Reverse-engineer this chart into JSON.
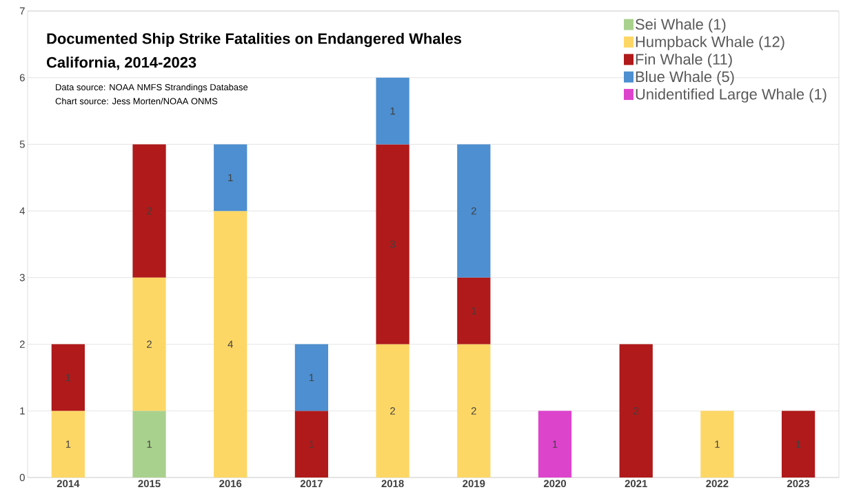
{
  "chart_data": {
    "type": "bar",
    "stacked": true,
    "title": "Documented Ship Strike Fatalities on Endangered Whales",
    "subtitle": "California, 2014-2023",
    "annotations": [
      "Data source: NOAA NMFS Strandings Database",
      "Chart source: Jess Morten/NOAA ONMS"
    ],
    "categories": [
      "2014",
      "2015",
      "2016",
      "2017",
      "2018",
      "2019",
      "2020",
      "2021",
      "2022",
      "2023"
    ],
    "series": [
      {
        "name": "Sei Whale (1)",
        "color": "#a9d18e",
        "values": [
          null,
          1,
          null,
          null,
          null,
          null,
          null,
          null,
          null,
          null
        ]
      },
      {
        "name": "Humpback Whale (12)",
        "color": "#fdd766",
        "values": [
          1,
          2,
          4,
          null,
          2,
          2,
          null,
          null,
          1,
          null
        ]
      },
      {
        "name": "Fin Whale (11)",
        "color": "#b01a1a",
        "values": [
          1,
          2,
          null,
          1,
          3,
          1,
          null,
          2,
          null,
          1
        ]
      },
      {
        "name": "Blue Whale (5)",
        "color": "#4d8fd0",
        "values": [
          null,
          null,
          1,
          1,
          1,
          2,
          null,
          null,
          null,
          null
        ]
      },
      {
        "name": "Unidentified Large Whale (1)",
        "color": "#dd44cc",
        "values": [
          null,
          null,
          null,
          null,
          null,
          null,
          1,
          null,
          null,
          null
        ]
      }
    ],
    "ylim": [
      0,
      7
    ],
    "yticks": [
      0,
      1,
      2,
      3,
      4,
      5,
      6,
      7
    ],
    "grid": "y",
    "legend": "top right",
    "data_labels": true
  }
}
